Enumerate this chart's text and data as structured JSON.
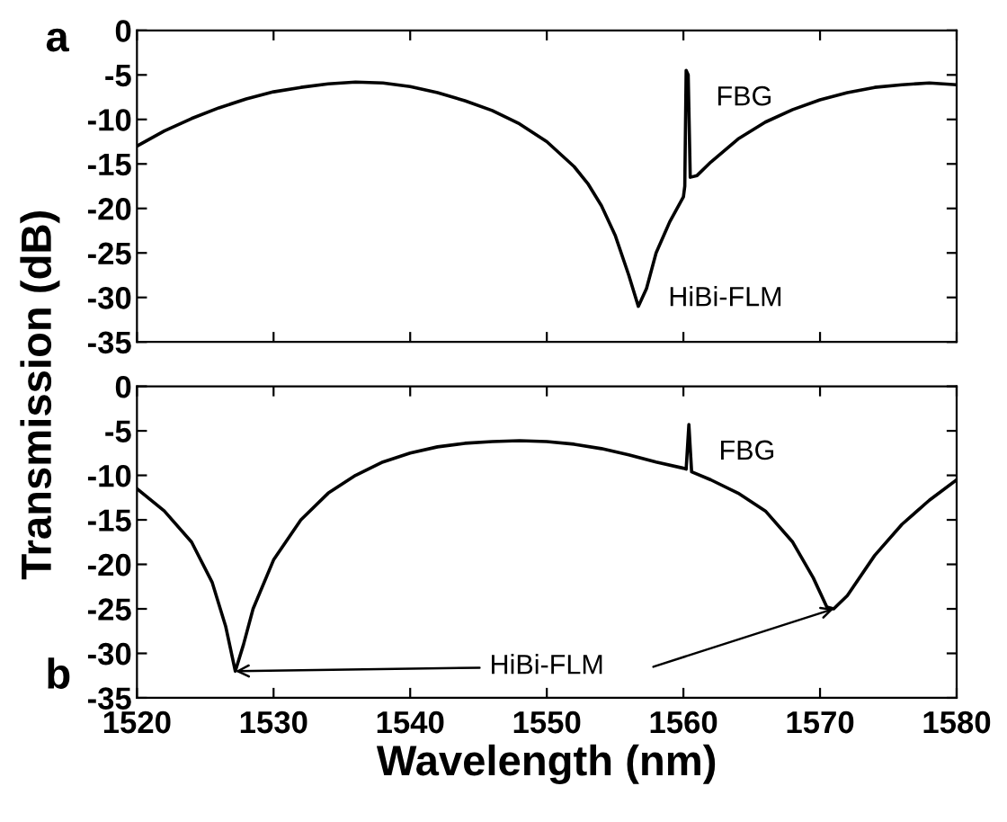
{
  "chart_data": [
    {
      "type": "line",
      "ylabel": "Transmission (dB)",
      "xlim": [
        1520,
        1580
      ],
      "xticks": [
        1520,
        1530,
        1540,
        1550,
        1560,
        1570,
        1580
      ],
      "ylim": [
        -35,
        0
      ],
      "yticks": [
        -35,
        -30,
        -25,
        -20,
        -15,
        -10,
        -5,
        0
      ],
      "tick_labels": "y",
      "grid": false,
      "legend": false,
      "series": [
        {
          "color": "#000000",
          "x": [
            1520,
            1522,
            1524,
            1526,
            1528,
            1530,
            1532,
            1534,
            1536,
            1538,
            1540,
            1542,
            1544,
            1546,
            1548,
            1550,
            1552,
            1553,
            1554,
            1555,
            1556,
            1556.7,
            1557.3,
            1558,
            1559,
            1560,
            1560.1,
            1560.2,
            1560.35,
            1560.5,
            1561,
            1562,
            1564,
            1566,
            1568,
            1570,
            1572,
            1574,
            1576,
            1578,
            1580
          ],
          "values": [
            -13,
            -11.3,
            -9.9,
            -8.7,
            -7.7,
            -6.9,
            -6.4,
            -6.0,
            -5.8,
            -5.9,
            -6.3,
            -7.0,
            -7.9,
            -9.0,
            -10.5,
            -12.5,
            -15.3,
            -17.2,
            -19.7,
            -23,
            -27.5,
            -31,
            -29,
            -25,
            -21.5,
            -18.7,
            -17.5,
            -4.5,
            -5,
            -16.5,
            -16.3,
            -14.8,
            -12.2,
            -10.3,
            -8.9,
            -7.8,
            -7,
            -6.4,
            -6.1,
            -5.9,
            -6.1
          ]
        }
      ],
      "annotations": [
        "a",
        {
          "text": "FBG",
          "x": 1560.2,
          "y": -4.5
        },
        {
          "text": "HiBi-FLM",
          "x": 1556.7,
          "y": -31
        }
      ]
    },
    {
      "type": "line",
      "xlabel": "Wavelength (nm)",
      "xlim": [
        1520,
        1580
      ],
      "xticks": [
        1520,
        1530,
        1540,
        1550,
        1560,
        1570,
        1580
      ],
      "ylim": [
        -35,
        0
      ],
      "yticks": [
        -35,
        -30,
        -25,
        -20,
        -15,
        -10,
        -5,
        0
      ],
      "grid": false,
      "legend": false,
      "series": [
        {
          "color": "#000000",
          "x": [
            1520,
            1522,
            1524,
            1525.5,
            1526.5,
            1527.2,
            1527.8,
            1528.5,
            1530,
            1532,
            1534,
            1536,
            1538,
            1540,
            1542,
            1544,
            1546,
            1548,
            1550,
            1552,
            1554,
            1556,
            1558,
            1560,
            1560.2,
            1560.4,
            1560.6,
            1562,
            1564,
            1566,
            1568,
            1569.5,
            1570.5,
            1571,
            1572,
            1574,
            1576,
            1578,
            1580
          ],
          "values": [
            -11.5,
            -14,
            -17.5,
            -22,
            -27,
            -32,
            -29,
            -25,
            -19.5,
            -15,
            -12,
            -10,
            -8.5,
            -7.5,
            -6.8,
            -6.4,
            -6.2,
            -6.1,
            -6.2,
            -6.5,
            -7,
            -7.7,
            -8.5,
            -9.2,
            -9.3,
            -4.3,
            -9.6,
            -10.5,
            -12,
            -14,
            -17.5,
            -21.5,
            -24.8,
            -25,
            -23.5,
            -19,
            -15.5,
            -12.8,
            -10.5
          ]
        }
      ],
      "annotations": [
        {
          "text": "FBG",
          "x": 1560.4,
          "y": -4.3
        },
        {
          "text": "HiBi-FLM",
          "x": 1527.2,
          "y": -32
        },
        "b"
      ]
    }
  ]
}
